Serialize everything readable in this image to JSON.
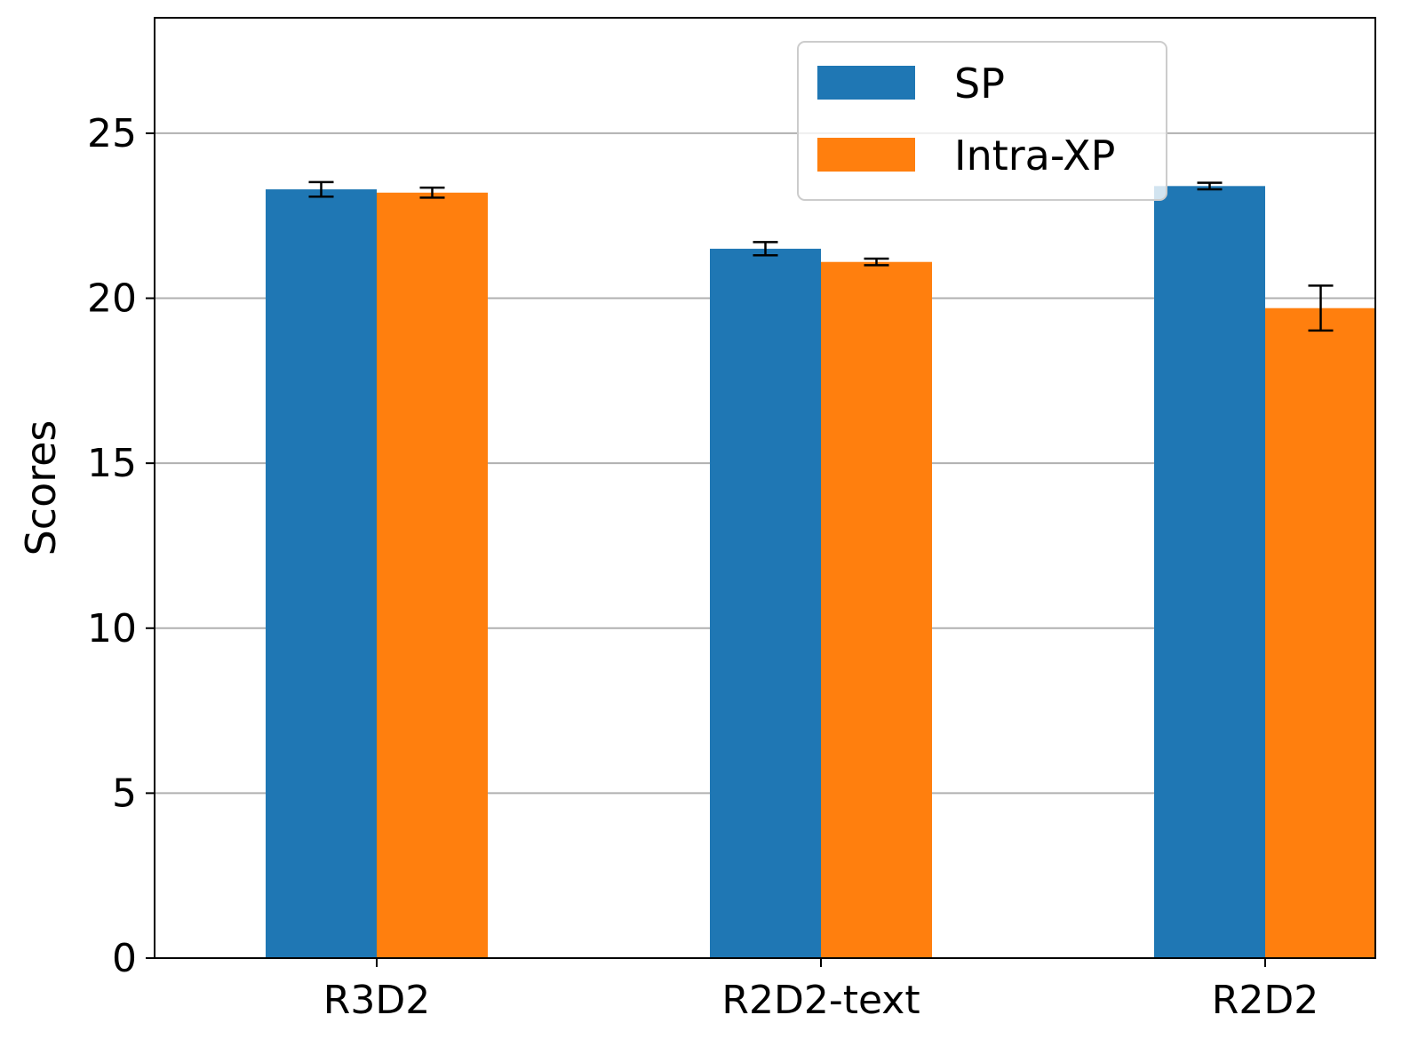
{
  "chart_data": {
    "type": "bar",
    "categories": [
      "R3D2",
      "R2D2-text",
      "R2D2"
    ],
    "series": [
      {
        "name": "SP",
        "color": "#1f77b4",
        "values": [
          23.3,
          21.5,
          23.4
        ],
        "errors": [
          0.22,
          0.2,
          0.1
        ]
      },
      {
        "name": "Intra-XP",
        "color": "#ff7f0e",
        "values": [
          23.2,
          21.1,
          19.7
        ],
        "errors": [
          0.15,
          0.1,
          0.68
        ]
      }
    ],
    "ylabel": "Scores",
    "xlabel": "",
    "ylim": [
      0,
      28.5
    ],
    "yticks": [
      0,
      5,
      10,
      15,
      20,
      25
    ],
    "grid": "horizontal",
    "legend_position": "top-right"
  }
}
